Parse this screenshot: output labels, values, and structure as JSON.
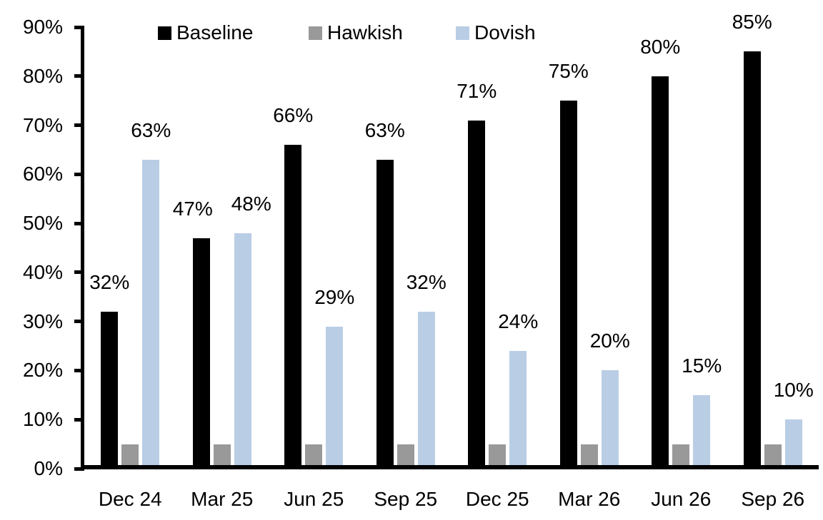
{
  "chart_data": {
    "type": "bar",
    "title": "",
    "xlabel": "",
    "ylabel": "",
    "categories": [
      "Dec 24",
      "Mar 25",
      "Jun 25",
      "Sep 25",
      "Dec 25",
      "Mar 26",
      "Jun 26",
      "Sep 26"
    ],
    "series": [
      {
        "name": "Baseline",
        "color": "#000000",
        "values": [
          32,
          47,
          66,
          63,
          71,
          75,
          80,
          85
        ],
        "labels": [
          "32%",
          "47%",
          "66%",
          "63%",
          "71%",
          "75%",
          "80%",
          "85%"
        ]
      },
      {
        "name": "Hawkish",
        "color": "#999999",
        "values": [
          5,
          5,
          5,
          5,
          5,
          5,
          5,
          5
        ],
        "labels": []
      },
      {
        "name": "Dovish",
        "color": "#B9CDE5",
        "values": [
          63,
          48,
          29,
          32,
          24,
          20,
          15,
          10
        ],
        "labels": [
          "63%",
          "48%",
          "29%",
          "32%",
          "24%",
          "20%",
          "15%",
          "10%"
        ]
      }
    ],
    "yticks": [
      "0%",
      "10%",
      "20%",
      "30%",
      "40%",
      "50%",
      "60%",
      "70%",
      "80%",
      "90%"
    ],
    "ylim": [
      0,
      90
    ],
    "legend_position": "top",
    "grid": false,
    "background": "#ffffff"
  }
}
